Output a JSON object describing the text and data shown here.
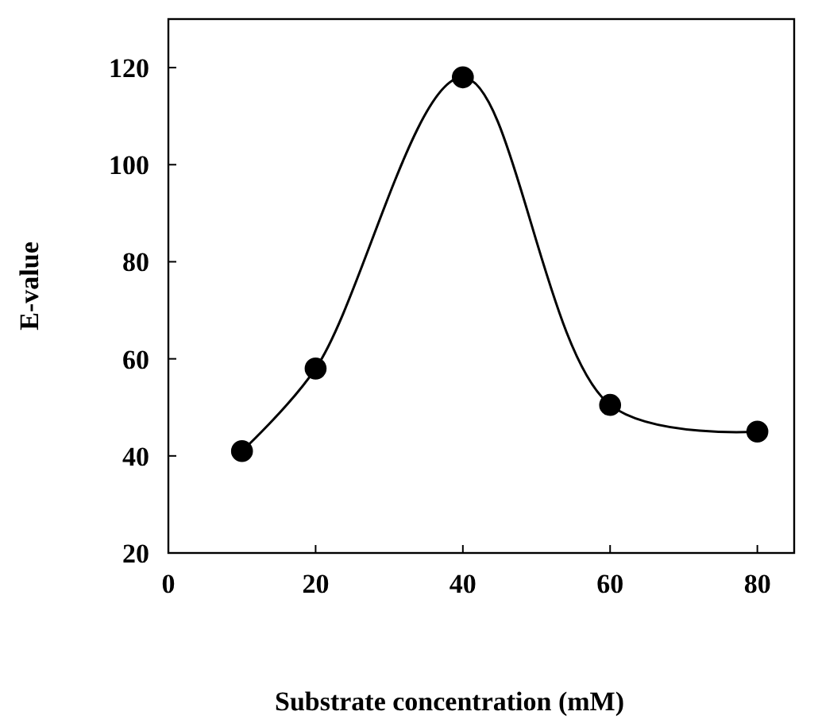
{
  "chart_data": {
    "type": "line",
    "xlabel": "Substrate concentration (mM)",
    "ylabel": "E-value",
    "x": [
      10,
      20,
      40,
      60,
      80
    ],
    "series": [
      {
        "color": "#000000",
        "values": [
          41,
          58,
          118,
          50.5,
          45
        ]
      }
    ],
    "xlim": [
      0,
      85
    ],
    "xticks": [
      0,
      20,
      40,
      60,
      80
    ],
    "ylim": [
      20,
      130
    ],
    "yticks": [
      20,
      40,
      60,
      80,
      100,
      120
    ],
    "marker": "circle",
    "line_style": "solid",
    "grid": false
  }
}
